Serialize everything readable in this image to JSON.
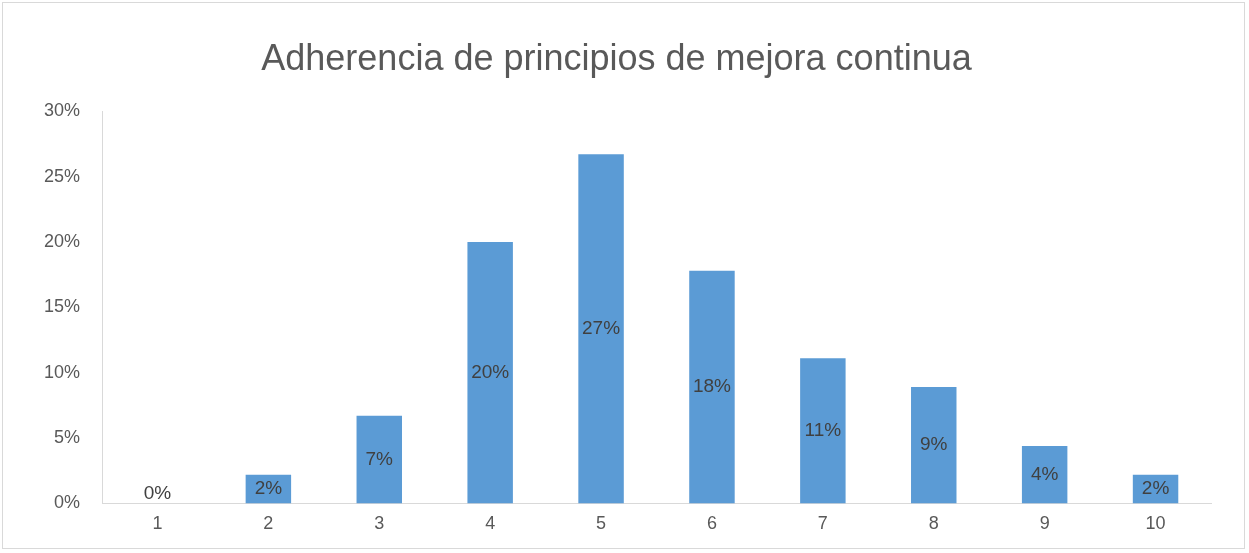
{
  "chart_data": {
    "type": "bar",
    "title": "Adherencia de principios de mejora continua",
    "categories": [
      "1",
      "2",
      "3",
      "4",
      "5",
      "6",
      "7",
      "8",
      "9",
      "10"
    ],
    "values": [
      0,
      2.2,
      6.7,
      20,
      26.7,
      17.8,
      11.1,
      8.9,
      4.4,
      2.2
    ],
    "value_labels": [
      "0%",
      "2%",
      "7%",
      "20%",
      "27%",
      "18%",
      "11%",
      "9%",
      "4%",
      "2%"
    ],
    "color": "#5b9bd5",
    "ylim": [
      0,
      30
    ],
    "yticks": [
      {
        "value": 0,
        "label": "0%"
      },
      {
        "value": 5,
        "label": "5%"
      },
      {
        "value": 10,
        "label": "10%"
      },
      {
        "value": 15,
        "label": "15%"
      },
      {
        "value": 20,
        "label": "20%"
      },
      {
        "value": 25,
        "label": "25%"
      },
      {
        "value": 30,
        "label": "30%"
      }
    ],
    "grid": false,
    "legend": false
  }
}
